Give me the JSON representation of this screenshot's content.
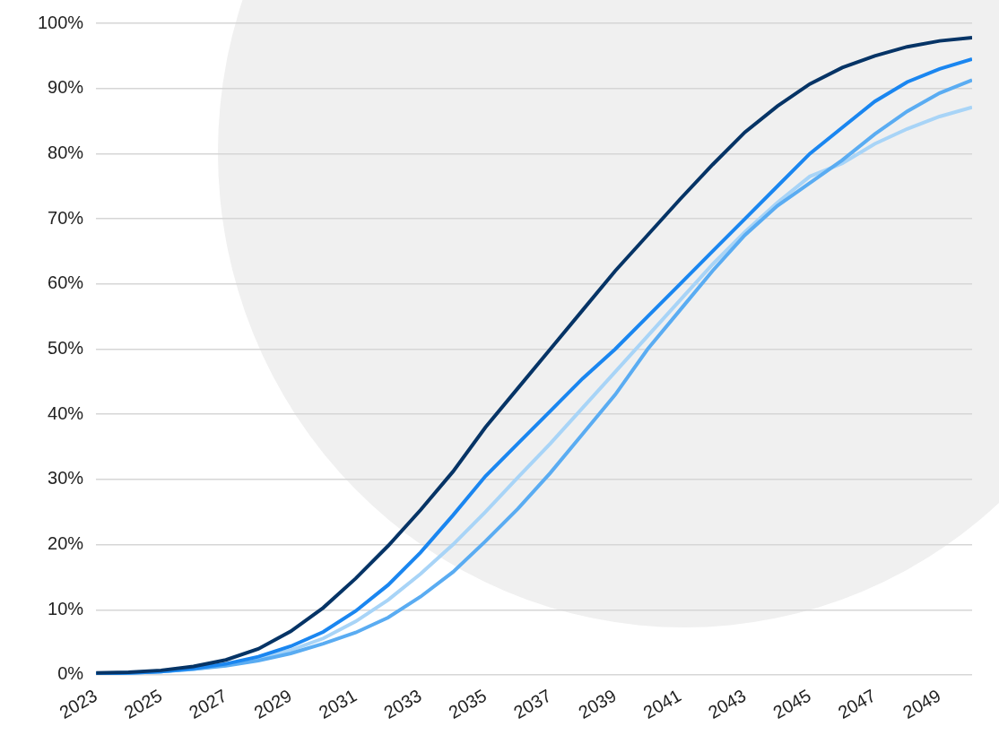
{
  "chart_data": {
    "type": "line",
    "categories": [
      2023,
      null,
      2025,
      null,
      2027,
      null,
      2029,
      null,
      2031,
      null,
      2033,
      null,
      2035,
      null,
      2037,
      null,
      2039,
      null,
      2041,
      null,
      2043,
      null,
      2045,
      null,
      2047,
      null,
      2049,
      null
    ],
    "series": [
      {
        "color": "#063466",
        "values": [
          0.3,
          0.4,
          0.7,
          1.3,
          2.3,
          4,
          6.7,
          10.3,
          14.8,
          19.8,
          25.3,
          31.2,
          38,
          44,
          50,
          56,
          62,
          67.5,
          73,
          78.3,
          83.3,
          87.3,
          90.7,
          93.2,
          95,
          96.4,
          97.3,
          97.8
        ]
      },
      {
        "color": "#1a86f0",
        "values": [
          0.2,
          0.3,
          0.5,
          1,
          1.7,
          2.8,
          4.4,
          6.6,
          9.8,
          13.8,
          18.8,
          24.5,
          30.5,
          35.5,
          40.5,
          45.5,
          50,
          55,
          60,
          65,
          70,
          75,
          80,
          84,
          88,
          91,
          93,
          94.5
        ]
      },
      {
        "color": "#5aacf2",
        "values": [
          0.2,
          0.3,
          0.5,
          0.9,
          1.4,
          2.2,
          3.3,
          4.8,
          6.5,
          8.8,
          12,
          15.8,
          20.5,
          25.5,
          31,
          37,
          43,
          50,
          56,
          62,
          67.5,
          72,
          75.5,
          79,
          83,
          86.5,
          89.3,
          91.3
        ]
      },
      {
        "color": "#a8d4f7",
        "values": [
          0.2,
          0.3,
          0.5,
          0.9,
          1.5,
          2.5,
          3.8,
          5.6,
          8.2,
          11.5,
          15.5,
          20,
          25,
          30.3,
          35.5,
          41,
          46.5,
          52,
          57.5,
          63,
          68,
          72.5,
          76.5,
          78.5,
          81.5,
          83.8,
          85.7,
          87.1
        ]
      }
    ],
    "ylim": [
      0,
      100
    ],
    "yticks": [
      {
        "value": 0,
        "label": "0%"
      },
      {
        "value": 10,
        "label": "10%"
      },
      {
        "value": 20,
        "label": "20%"
      },
      {
        "value": 30,
        "label": "30%"
      },
      {
        "value": 40,
        "label": "40%"
      },
      {
        "value": 50,
        "label": "50%"
      },
      {
        "value": 60,
        "label": "60%"
      },
      {
        "value": 70,
        "label": "70%"
      },
      {
        "value": 80,
        "label": "80%"
      },
      {
        "value": 90,
        "label": "90%"
      },
      {
        "value": 100,
        "label": "100%"
      }
    ],
    "grid": true
  }
}
